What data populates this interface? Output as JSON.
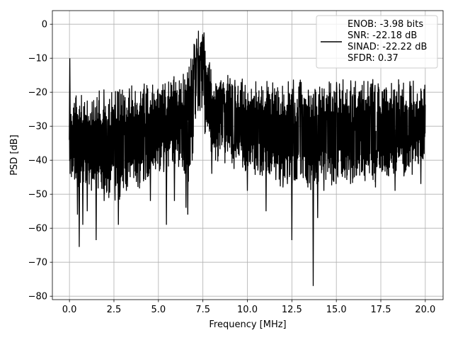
{
  "chart_data": {
    "type": "line",
    "title": "",
    "xlabel": "Frequency [MHz]",
    "ylabel": "PSD [dB]",
    "xlim": [
      -0.96,
      21.0
    ],
    "ylim": [
      -81,
      4
    ],
    "x_ticks": [
      0.0,
      2.5,
      5.0,
      7.5,
      10.0,
      12.5,
      15.0,
      17.5,
      20.0
    ],
    "x_tick_labels": [
      "0.0",
      "2.5",
      "5.0",
      "7.5",
      "10.0",
      "12.5",
      "15.0",
      "17.5",
      "20.0"
    ],
    "y_ticks": [
      0,
      -10,
      -20,
      -30,
      -40,
      -50,
      -60,
      -70,
      -80
    ],
    "y_tick_labels": [
      "0",
      "−10",
      "−20",
      "−30",
      "−40",
      "−50",
      "−60",
      "−70",
      "−80"
    ],
    "grid": true,
    "legend_position": "top-right",
    "series": [
      {
        "color": "#000000",
        "description": "noisy power spectral density trace with a peak near 7.3 MHz",
        "envelope": {
          "x": [
            0.0,
            1.0,
            2.0,
            3.0,
            4.0,
            5.0,
            6.0,
            6.5,
            6.8,
            7.0,
            7.2,
            7.4,
            7.6,
            7.8,
            8.0,
            9.0,
            10.0,
            11.0,
            12.0,
            13.0,
            14.0,
            15.0,
            16.0,
            17.0,
            18.0,
            19.0,
            20.0
          ],
          "max": [
            -21,
            -20,
            -19,
            -18,
            -17,
            -16,
            -15,
            -13,
            -9,
            -5,
            -2,
            -0.3,
            -3,
            -8,
            -14,
            -15,
            -16,
            -16,
            -16,
            -16,
            -16,
            -16,
            -16,
            -16,
            -16,
            -16,
            -17
          ],
          "min": [
            -47,
            -50,
            -52,
            -52,
            -48,
            -45,
            -43,
            -45,
            -48,
            -35,
            -30,
            -28,
            -32,
            -38,
            -40,
            -42,
            -44,
            -46,
            -48,
            -49,
            -49,
            -48,
            -47,
            -47,
            -46,
            -46,
            -40
          ]
        },
        "spikes": [
          {
            "x": 0.02,
            "y": -10
          },
          {
            "x": 0.45,
            "y": -56
          },
          {
            "x": 0.55,
            "y": -65.5
          },
          {
            "x": 0.75,
            "y": -59
          },
          {
            "x": 1.0,
            "y": -55
          },
          {
            "x": 1.5,
            "y": -63.5
          },
          {
            "x": 1.95,
            "y": -52
          },
          {
            "x": 2.75,
            "y": -59
          },
          {
            "x": 3.2,
            "y": -49
          },
          {
            "x": 4.55,
            "y": -52
          },
          {
            "x": 5.45,
            "y": -59
          },
          {
            "x": 5.9,
            "y": -52
          },
          {
            "x": 6.55,
            "y": -54
          },
          {
            "x": 6.65,
            "y": -56
          },
          {
            "x": 8.0,
            "y": -44
          },
          {
            "x": 10.0,
            "y": -49
          },
          {
            "x": 11.05,
            "y": -55
          },
          {
            "x": 12.25,
            "y": -47
          },
          {
            "x": 12.5,
            "y": -63.5
          },
          {
            "x": 13.4,
            "y": -48
          },
          {
            "x": 13.7,
            "y": -77
          },
          {
            "x": 13.95,
            "y": -57
          },
          {
            "x": 14.3,
            "y": -49
          },
          {
            "x": 15.8,
            "y": -47
          },
          {
            "x": 17.2,
            "y": -48
          },
          {
            "x": 18.3,
            "y": -49
          },
          {
            "x": 19.75,
            "y": -47
          }
        ]
      }
    ],
    "legend": {
      "lines": [
        "ENOB: -3.98 bits",
        "SNR: -22.18 dB",
        "SINAD: -22.22 dB",
        "SFDR: 0.37"
      ],
      "color": "#000000"
    }
  },
  "colors": {
    "line": "#000000",
    "grid": "#b0b0b0",
    "axes": "#000000",
    "legend_border": "#cccccc"
  }
}
